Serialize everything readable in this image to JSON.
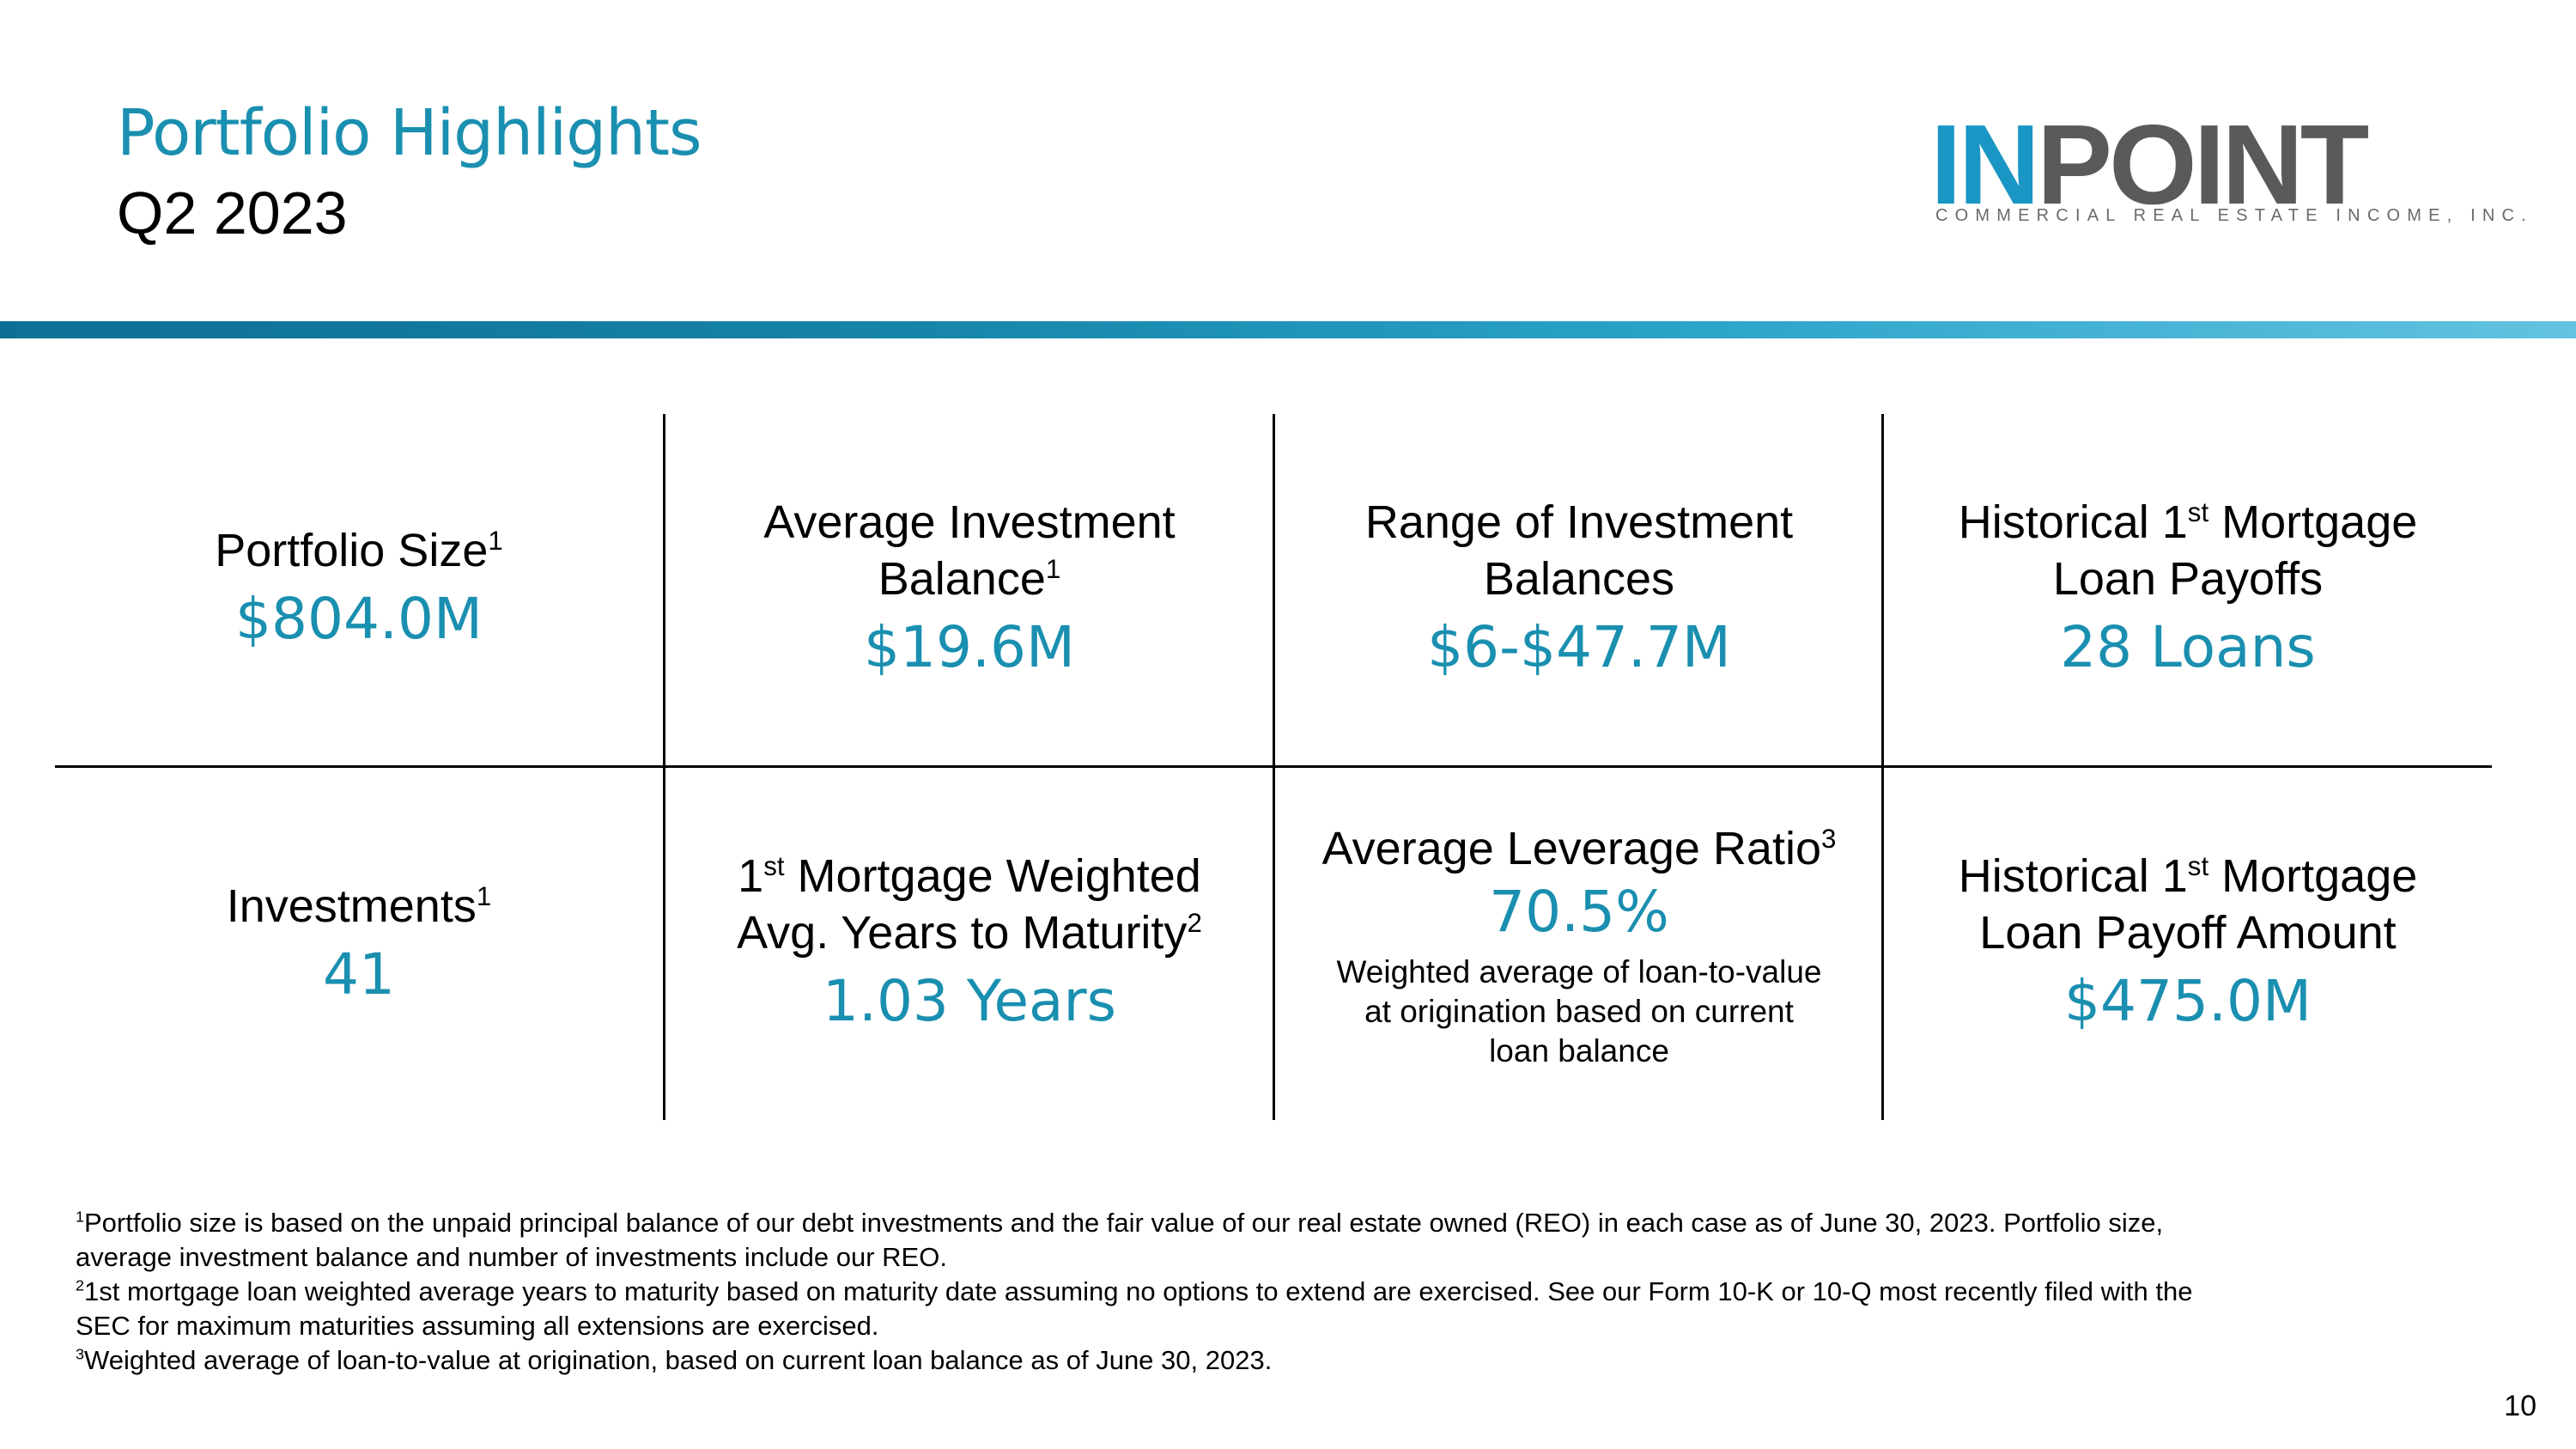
{
  "header": {
    "title": "Portfolio Highlights",
    "subtitle": "Q2 2023"
  },
  "logo": {
    "word_in": "IN",
    "word_point": "POINT",
    "tagline": "COMMERCIAL REAL ESTATE INCOME, INC."
  },
  "colors": {
    "accent": "#1a8fb0",
    "band_dark": "#0d6f93",
    "band_light": "#63c3e0",
    "logo_gray": "#5a5a5c"
  },
  "metrics": {
    "portfolio_size": {
      "label": "Portfolio Size",
      "sup": "1",
      "value": "$804.0M"
    },
    "avg_investment": {
      "label_1": "Average Investment",
      "label_2": "Balance",
      "sup": "1",
      "value": "$19.6M"
    },
    "range": {
      "label_1": "Range of Investment",
      "label_2": "Balances",
      "value": "$6-$47.7M"
    },
    "payoffs": {
      "label_pre": "Historical 1",
      "label_sup": "st",
      "label_post": " Mortgage",
      "label_2": "Loan Payoffs",
      "value": "28 Loans"
    },
    "investments": {
      "label": "Investments",
      "sup": "1",
      "value": "41"
    },
    "maturity": {
      "label_pre": "1",
      "label_sup": "st",
      "label_post": " Mortgage Weighted",
      "label_2": "Avg. Years to Maturity",
      "sup": "2",
      "value": "1.03 Years"
    },
    "leverage": {
      "label": "Average Leverage Ratio",
      "sup": "3",
      "value": "70.5%",
      "note_1": "Weighted average of loan-to-value",
      "note_2": "at origination based on current",
      "note_3": "loan balance"
    },
    "payoff_amount": {
      "label_pre": "Historical 1",
      "label_sup": "st",
      "label_post": " Mortgage",
      "label_2": "Loan Payoff Amount",
      "value": "$475.0M"
    }
  },
  "footnotes": {
    "f1_mark": "1",
    "f1_line1": "Portfolio size is based on the unpaid principal balance of our debt investments and the fair value of our real estate owned (REO) in each case as of June 30, 2023. Portfolio size,",
    "f1_line2": "average investment balance and number of investments include our REO.",
    "f2_mark": "2",
    "f2_line1": "1st mortgage loan weighted average years to maturity based on maturity date assuming no options to extend are exercised. See our Form 10-K or 10-Q most recently filed with the",
    "f2_line2": "SEC for maximum maturities assuming all extensions are exercised.",
    "f3_mark": "3",
    "f3_line1": "Weighted average of loan-to-value at origination, based on current loan balance as of June 30, 2023."
  },
  "page_number": "10"
}
